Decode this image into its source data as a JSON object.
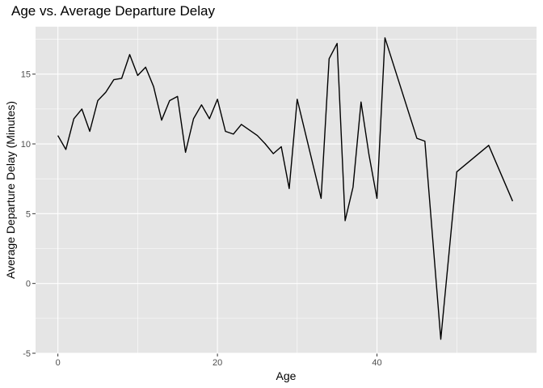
{
  "chart_data": {
    "type": "line",
    "title": "Age vs. Average Departure Delay",
    "xlabel": "Age",
    "ylabel": "Average Departure Delay (Minutes)",
    "xlim": [
      -2.8,
      60
    ],
    "ylim": [
      -5,
      18.4
    ],
    "x_ticks": [
      0,
      20,
      40
    ],
    "y_ticks": [
      -5,
      0,
      5,
      10,
      15
    ],
    "x_tick_labels": [
      "0",
      "20",
      "40"
    ],
    "y_tick_labels": [
      "-5",
      "0",
      "5",
      "10",
      "15"
    ],
    "grid": true,
    "line_color": "#000000",
    "panel_background": "#e5e5e5",
    "grid_color": "#ffffff",
    "series": [
      {
        "x": [
          0,
          1,
          2,
          3,
          4,
          5,
          6,
          7,
          8,
          9,
          10,
          11,
          12,
          13,
          14,
          15,
          16,
          17,
          18,
          19,
          20,
          21,
          22,
          23,
          24,
          25,
          26,
          27,
          28,
          29,
          30,
          33,
          34,
          35,
          36,
          37,
          38,
          39,
          40,
          41,
          45,
          46,
          48,
          50,
          54,
          57
        ],
        "y": [
          10.6,
          9.6,
          11.8,
          12.5,
          10.9,
          13.1,
          13.7,
          14.6,
          14.7,
          16.4,
          14.9,
          15.5,
          14.1,
          11.7,
          13.1,
          13.4,
          9.4,
          11.8,
          12.8,
          11.8,
          13.2,
          10.9,
          10.7,
          11.4,
          11.0,
          10.6,
          10.0,
          9.3,
          9.8,
          6.8,
          13.2,
          6.1,
          16.1,
          17.2,
          4.5,
          6.9,
          13.0,
          9.2,
          6.1,
          17.6,
          10.4,
          10.2,
          -4.0,
          8.0,
          9.9,
          5.9
        ]
      }
    ]
  }
}
